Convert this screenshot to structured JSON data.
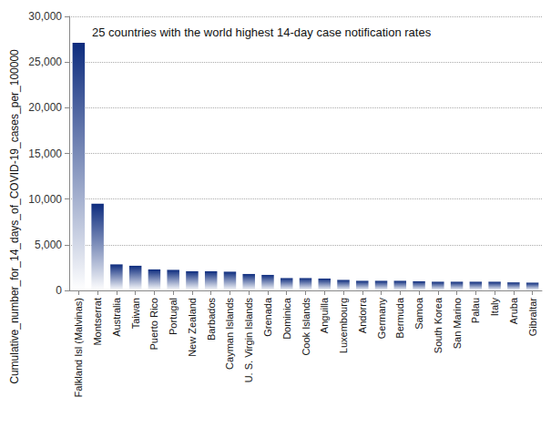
{
  "chart_data": {
    "type": "bar",
    "title": "25 countries with the world highest 14-day case notification rates",
    "y_label": "Cumulative_number_for_14_days_of_COVID-19_cases_per_100000",
    "categories": [
      "Falkland Isl (Malvinas)",
      "Montserrat",
      "Australia",
      "Taiwan",
      "Puerto Rico",
      "Portugal",
      "New Zealand",
      "Barbados",
      "Cayman Islands",
      "U. S. Virgin Islands",
      "Grenada",
      "Dominica",
      "Cook Islands",
      "Anguilla",
      "Luxembourg",
      "Andorra",
      "Germany",
      "Bermuda",
      "Samoa",
      "South Korea",
      "San Marino",
      "Palau",
      "Italy",
      "Aruba",
      "Gibraltar"
    ],
    "values": [
      27100,
      9500,
      2850,
      2700,
      2300,
      2250,
      2100,
      2100,
      2050,
      1800,
      1700,
      1350,
      1350,
      1300,
      1150,
      1050,
      1050,
      1050,
      1000,
      950,
      950,
      950,
      950,
      880,
      850
    ],
    "color": "#0d2c7e",
    "ylim": [
      0,
      30000
    ],
    "yticks": [
      0,
      {
        "value": 5000,
        "label": "5,000"
      },
      {
        "value": 10000,
        "label": "10,000"
      },
      {
        "value": 15000,
        "label": "15,000"
      },
      {
        "value": 20000,
        "label": "20,000"
      },
      {
        "value": 25000,
        "label": "25,000"
      },
      {
        "value": 30000,
        "label": "30,000"
      }
    ],
    "grid": true
  }
}
